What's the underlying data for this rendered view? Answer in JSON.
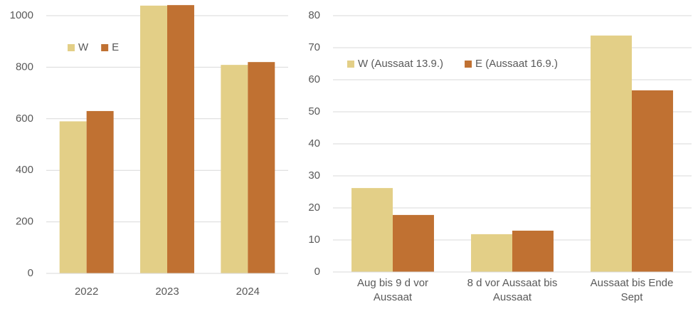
{
  "chart_data": [
    {
      "type": "bar",
      "categories": [
        "2022",
        "2023",
        "2024"
      ],
      "series": [
        {
          "name": "W",
          "color": "#e3cf87",
          "values": [
            590,
            1039,
            809
          ]
        },
        {
          "name": "E",
          "color": "#c07132",
          "values": [
            630,
            1041,
            820
          ]
        }
      ],
      "ylim": [
        0,
        1000
      ],
      "yticks": [
        0,
        200,
        400,
        600,
        800,
        1000
      ],
      "grid": true,
      "legend": "upper left"
    },
    {
      "type": "bar",
      "categories": [
        "Aug bis 9 d vor Aussaat",
        "8 d vor Aussaat bis Aussaat",
        "Aussaat bis Ende Sept"
      ],
      "series": [
        {
          "name": "W (Aussaat 13.9.)",
          "color": "#e3cf87",
          "values": [
            26.2,
            11.8,
            73.8
          ]
        },
        {
          "name": "E (Aussaat 16.9.)",
          "color": "#c07132",
          "values": [
            17.8,
            12.9,
            56.7
          ]
        }
      ],
      "ylim": [
        0,
        80
      ],
      "yticks": [
        0,
        10,
        20,
        30,
        40,
        50,
        60,
        70,
        80
      ],
      "grid": true,
      "legend": "upper left"
    }
  ]
}
